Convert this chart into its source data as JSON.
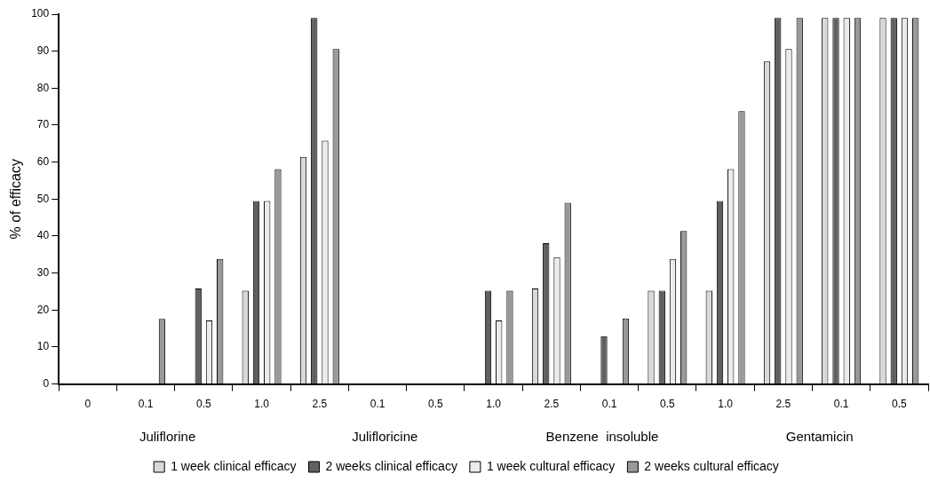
{
  "chart_data": {
    "type": "bar",
    "ylabel": "% of efficacy",
    "categories": [
      "0",
      "0.1",
      "0.5",
      "1.0",
      "2.5",
      "0.1",
      "0.5",
      "1.0",
      "2.5",
      "0.1",
      "0.5",
      "1.0",
      "2.5",
      "0.1",
      "0.5"
    ],
    "series": [
      {
        "name": "1 week clinical efficacy",
        "color": "#d9d9d9",
        "values": [
          null,
          null,
          null,
          25.2,
          61.4,
          null,
          null,
          null,
          25.8,
          null,
          25.2,
          25.2,
          87.2,
          99,
          99
        ]
      },
      {
        "name": "2 weeks clinical efficacy",
        "color": "#606060",
        "values": [
          null,
          null,
          25.8,
          49.5,
          99,
          null,
          null,
          25.2,
          38.1,
          12.9,
          25.2,
          49.5,
          99,
          99,
          99
        ]
      },
      {
        "name": "1 week cultural efficacy",
        "color": "#ebebeb",
        "values": [
          null,
          null,
          17.2,
          49.5,
          65.8,
          null,
          null,
          17.2,
          34.3,
          null,
          33.8,
          58.1,
          90.6,
          99,
          99
        ]
      },
      {
        "name": "2 weeks cultural efficacy",
        "color": "#999999",
        "values": [
          null,
          17.6,
          33.8,
          58.1,
          90.6,
          null,
          null,
          25.2,
          49,
          17.7,
          41.4,
          73.8,
          99,
          99,
          99
        ]
      }
    ],
    "annotations": [
      "Juliflorine",
      "Julifloricine",
      "Benzene  insoluble",
      "Gentamicin"
    ],
    "ylim": [
      0,
      100
    ],
    "yticks": [
      0,
      10,
      20,
      30,
      40,
      50,
      60,
      70,
      80,
      90,
      100
    ],
    "grid": false,
    "legend": "bottom"
  }
}
